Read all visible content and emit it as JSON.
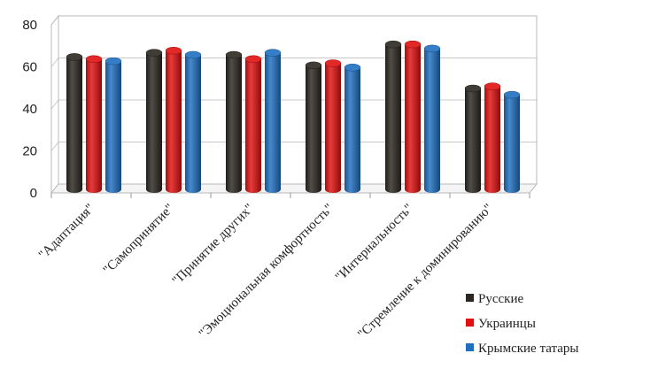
{
  "chart_data": {
    "type": "bar",
    "title": "",
    "xlabel": "",
    "ylabel": "",
    "ylim": [
      0,
      80
    ],
    "yticks": [
      0,
      20,
      40,
      60,
      80
    ],
    "grid": true,
    "legend_position": "bottom-right",
    "categories": [
      "\"Адаптация\"",
      "\"Самопринятие\"",
      "\"Принятие других\"",
      "\"Эмоциональная комфортность\"",
      "\"Интернальность\"",
      "\"Стремление к доминированию\""
    ],
    "series": [
      {
        "name": "Русские",
        "color": "#2b2620",
        "values": [
          63,
          65,
          64,
          59,
          69,
          48
        ]
      },
      {
        "name": "Украинцы",
        "color": "#e01010",
        "values": [
          62,
          66,
          62,
          60,
          69,
          49
        ]
      },
      {
        "name": "Крымские татары",
        "color": "#1f6fc0",
        "values": [
          61,
          64,
          65,
          58,
          67,
          45
        ]
      }
    ]
  }
}
